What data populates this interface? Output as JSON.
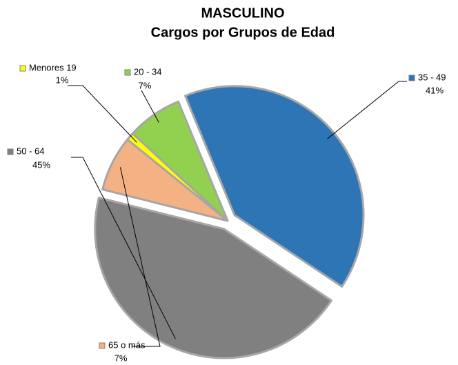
{
  "chart_data": {
    "type": "pie",
    "title": "MASCULINO",
    "subtitle": "Cargos por Grupos de Edad",
    "categories": [
      "Menores 19",
      "20 - 34",
      "35 - 49",
      "50 - 64",
      "65 o más"
    ],
    "values": [
      1,
      7,
      41,
      45,
      7
    ],
    "value_labels": [
      "1%",
      "7%",
      "41%",
      "45%",
      "7%"
    ],
    "colors": [
      "#ffff00",
      "#92d050",
      "#2e75b6",
      "#808080",
      "#f4b183"
    ]
  }
}
